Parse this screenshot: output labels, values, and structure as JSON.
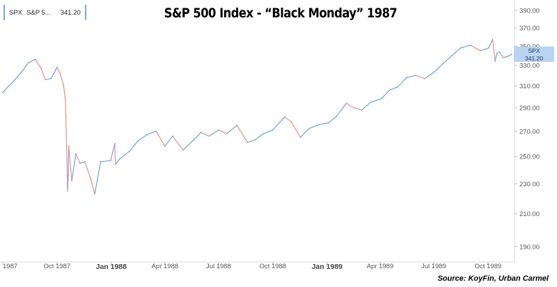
{
  "header": {
    "title": "S&P 500 Index - “Black Monday” 1987",
    "source": "Source: KoyFin, Urban Carmel"
  },
  "legend": {
    "ticker": "SPX",
    "name": "S&P 5...",
    "value": "341.20"
  },
  "badge": {
    "ticker": "SPX",
    "value": "341.20"
  },
  "colors": {
    "up": "#6f9fdc",
    "down": "#ef8a8a",
    "axis": "#d8d8d8",
    "badge_bg": "#b9d3f2"
  },
  "chart_data": {
    "type": "line",
    "title": "S&P 500 Index - “Black Monday” 1987",
    "xlabel": "",
    "ylabel": "",
    "ylim": [
      184,
      401
    ],
    "y_scale": "log",
    "y_ticks": [
      190,
      210,
      230,
      250,
      270,
      290,
      310,
      330,
      350,
      370,
      390
    ],
    "y_tick_labels": [
      "190.00",
      "210.00",
      "230.00",
      "250.00",
      "270.00",
      "290.00",
      "310.00",
      "330.00",
      "350.00",
      "370.00",
      "390.00"
    ],
    "x_ticks": [
      "1987-07-01",
      "1987-10-01",
      "1988-01-01",
      "1988-04-01",
      "1988-07-01",
      "1988-10-01",
      "1989-01-01",
      "1989-04-01",
      "1989-07-01",
      "1989-10-01"
    ],
    "x_tick_labels": [
      "1987",
      "Oct 1987",
      "Jan 1988",
      "Apr 1988",
      "Jul 1988",
      "Oct 1988",
      "Jan 1989",
      "Apr 1989",
      "Jul 1989",
      "Oct 1989"
    ],
    "x_tick_bold": [
      false,
      false,
      true,
      false,
      false,
      false,
      true,
      false,
      false,
      false
    ],
    "xlim": [
      "1987-07-01",
      "1989-11-15"
    ],
    "grid": false,
    "series": [
      {
        "name": "SPX",
        "x": [
          "1987-07-01",
          "1987-07-15",
          "1987-07-31",
          "1987-08-14",
          "1987-08-25",
          "1987-09-04",
          "1987-09-11",
          "1987-09-21",
          "1987-10-01",
          "1987-10-06",
          "1987-10-12",
          "1987-10-15",
          "1987-10-16",
          "1987-10-19",
          "1987-10-20",
          "1987-10-21",
          "1987-10-26",
          "1987-11-02",
          "1987-11-09",
          "1987-11-17",
          "1987-11-27",
          "1987-12-04",
          "1987-12-14",
          "1987-12-31",
          "1988-01-07",
          "1988-01-08",
          "1988-01-15",
          "1988-02-01",
          "1988-02-15",
          "1988-03-01",
          "1988-03-17",
          "1988-04-01",
          "1988-04-14",
          "1988-05-02",
          "1988-05-20",
          "1988-06-01",
          "1988-06-15",
          "1988-07-01",
          "1988-07-15",
          "1988-08-01",
          "1988-08-19",
          "1988-09-01",
          "1988-09-15",
          "1988-10-01",
          "1988-10-21",
          "1988-11-01",
          "1988-11-17",
          "1988-12-01",
          "1988-12-15",
          "1989-01-03",
          "1989-01-16",
          "1989-02-03",
          "1989-02-16",
          "1989-03-01",
          "1989-03-16",
          "1989-04-03",
          "1989-04-17",
          "1989-05-01",
          "1989-05-16",
          "1989-06-01",
          "1989-06-16",
          "1989-07-03",
          "1989-07-17",
          "1989-08-01",
          "1989-08-16",
          "1989-09-01",
          "1989-09-18",
          "1989-10-02",
          "1989-10-09",
          "1989-10-13",
          "1989-10-16",
          "1989-10-20",
          "1989-10-27",
          "1989-11-03",
          "1989-11-10"
        ],
        "values": [
          304,
          312,
          322,
          333,
          336,
          327,
          316,
          317,
          328,
          322,
          311,
          298,
          283,
          225,
          236,
          258,
          232,
          252,
          245,
          246,
          234,
          223,
          246,
          247,
          260,
          244,
          248,
          254,
          262,
          267,
          270,
          258,
          266,
          255,
          263,
          269,
          266,
          271,
          268,
          275,
          261,
          263,
          268,
          271,
          282,
          278,
          265,
          272,
          275,
          277,
          282,
          294,
          290,
          288,
          295,
          298,
          306,
          309,
          318,
          320,
          317,
          324,
          332,
          340,
          348,
          351,
          345,
          348,
          357,
          334,
          342,
          344,
          338,
          339,
          341.2
        ]
      }
    ]
  }
}
